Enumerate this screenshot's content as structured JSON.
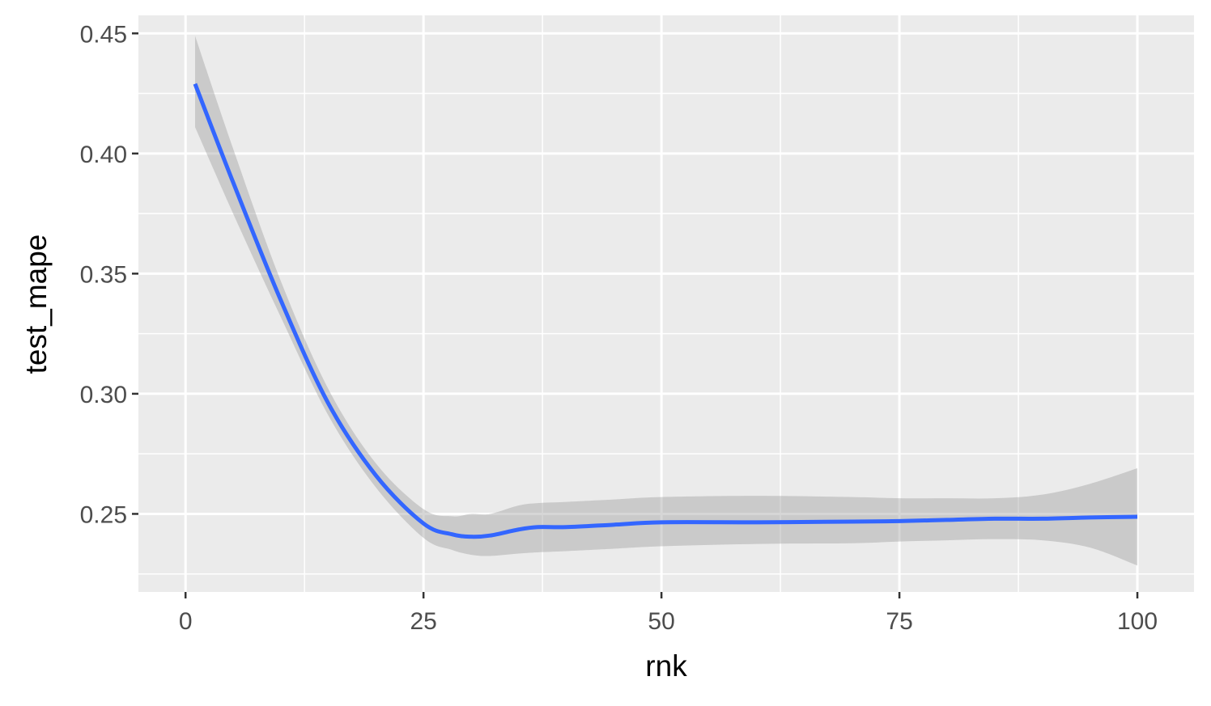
{
  "chart_data": {
    "type": "line",
    "title": "",
    "xlabel": "rnk",
    "ylabel": "test_mape",
    "xlim": [
      -4.95,
      105.95
    ],
    "ylim": [
      0.2175,
      0.4575
    ],
    "x_ticks": [
      0,
      25,
      50,
      75,
      100
    ],
    "x_tick_labels": [
      "0",
      "25",
      "50",
      "75",
      "100"
    ],
    "y_ticks": [
      0.25,
      0.3,
      0.35,
      0.4,
      0.45
    ],
    "y_tick_labels": [
      "0.25",
      "0.30",
      "0.35",
      "0.40",
      "0.45"
    ],
    "grid": true,
    "legend": "none",
    "series": [
      {
        "x": [
          1,
          5,
          10,
          15,
          20,
          25,
          28,
          30,
          32,
          35,
          37,
          40,
          45,
          50,
          60,
          70,
          75,
          80,
          85,
          90,
          95,
          100
        ],
        "y": [
          0.429,
          0.388,
          0.339,
          0.296,
          0.266,
          0.246,
          0.2415,
          0.2405,
          0.241,
          0.2435,
          0.2445,
          0.2445,
          0.2455,
          0.2465,
          0.2465,
          0.2468,
          0.247,
          0.2475,
          0.248,
          0.248,
          0.2485,
          0.2488
        ],
        "lower": [
          0.411,
          0.375,
          0.332,
          0.291,
          0.261,
          0.24,
          0.235,
          0.233,
          0.2325,
          0.2335,
          0.234,
          0.2345,
          0.2355,
          0.2365,
          0.2375,
          0.2378,
          0.2385,
          0.239,
          0.2395,
          0.239,
          0.236,
          0.2285
        ],
        "upper": [
          0.449,
          0.402,
          0.347,
          0.302,
          0.271,
          0.252,
          0.249,
          0.25,
          0.25,
          0.2535,
          0.2545,
          0.255,
          0.256,
          0.257,
          0.2575,
          0.257,
          0.2565,
          0.2565,
          0.2565,
          0.258,
          0.2625,
          0.269
        ]
      }
    ],
    "colors": {
      "panel": "#ebebeb",
      "grid": "#ffffff",
      "line": "#3366ff",
      "ribbon": "#999999",
      "tick_label": "#4d4d4d",
      "axis_title": "#000000"
    }
  }
}
